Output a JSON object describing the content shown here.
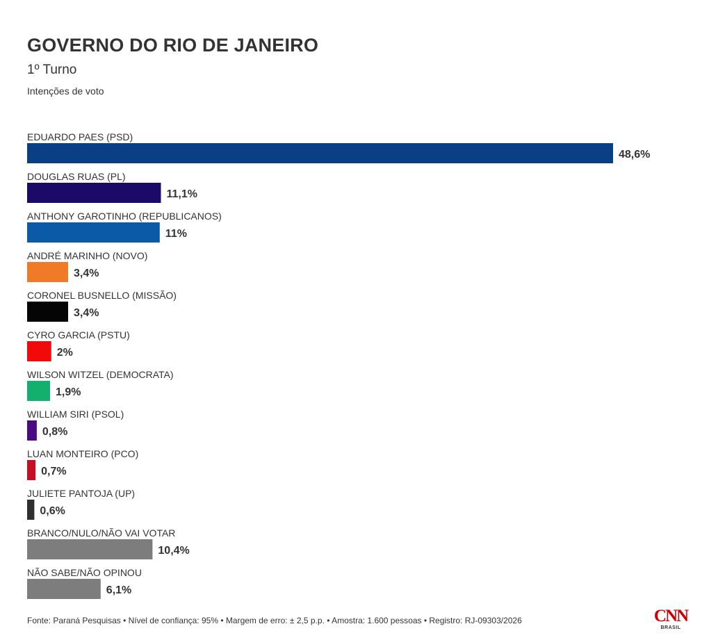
{
  "header": {
    "title": "GOVERNO DO RIO DE JANEIRO",
    "subtitle": "1º Turno",
    "description": "Intenções de voto"
  },
  "chart_data": {
    "type": "bar",
    "orientation": "horizontal",
    "categories": [
      "EDUARDO PAES (PSD)",
      "DOUGLAS RUAS (PL)",
      "ANTHONY GAROTINHO (REPUBLICANOS)",
      "ANDRÉ MARINHO (NOVO)",
      "CORONEL BUSNELLO (MISSÃO)",
      "CYRO GARCIA (PSTU)",
      "WILSON WITZEL (DEMOCRATA)",
      "WILLIAM SIRI (PSOL)",
      "LUAN MONTEIRO (PCO)",
      "JULIETE PANTOJA (UP)",
      "BRANCO/NULO/NÃO VAI VOTAR",
      "NÃO SABE/NÃO OPINOU"
    ],
    "values": [
      48.6,
      11.1,
      11,
      3.4,
      3.4,
      2,
      1.9,
      0.8,
      0.7,
      0.6,
      10.4,
      6.1
    ],
    "value_labels": [
      "48,6%",
      "11,1%",
      "11%",
      "3,4%",
      "3,4%",
      "2%",
      "1,9%",
      "0,8%",
      "0,7%",
      "0,6%",
      "10,4%",
      "6,1%"
    ],
    "colors": [
      "#0b3f83",
      "#1b0a68",
      "#0a5aa8",
      "#f07a28",
      "#050505",
      "#f20a0a",
      "#12b06c",
      "#4b0a82",
      "#c60f24",
      "#2f2f2f",
      "#7d7d7d",
      "#7d7d7d"
    ],
    "xlim": [
      0,
      48.6
    ],
    "grid": false,
    "legend": "none"
  },
  "footer": {
    "source": "Fonte: Paraná Pesquisas • Nível de confiança: 95% • Margem de erro: ± 2,5 p.p. • Amostra: 1.600 pessoas • Registro: RJ-09303/2026"
  },
  "logo": {
    "mark": "CNN",
    "sub": "BRASIL",
    "color": "#cc0000"
  }
}
